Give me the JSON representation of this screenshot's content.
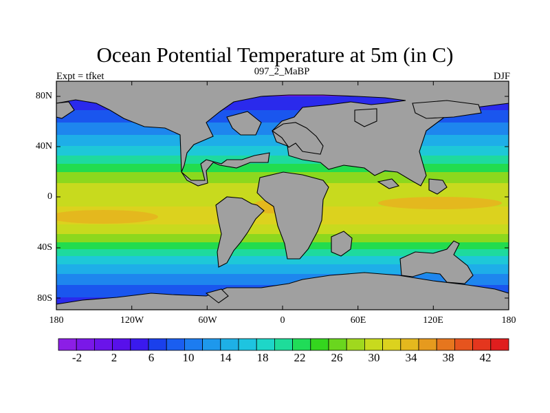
{
  "title": "Ocean Potential Temperature at 5m (in C)",
  "subtitle_left": "Expt = tfket",
  "subtitle_center": "097_2_MaBP",
  "subtitle_right": "DJF",
  "lat_labels": [
    "80N",
    "40N",
    "0",
    "40S",
    "80S"
  ],
  "lon_labels": [
    "180",
    "120W",
    "60W",
    "0",
    "60E",
    "120E",
    "180"
  ],
  "colorbar": {
    "labels": [
      "-2",
      "2",
      "6",
      "10",
      "14",
      "18",
      "22",
      "26",
      "30",
      "34",
      "38",
      "42"
    ],
    "colors": [
      "#8c1ee6",
      "#7a18e8",
      "#6a14ea",
      "#5810ea",
      "#3a1aee",
      "#1a40ec",
      "#1a5ef0",
      "#1c7cf0",
      "#1e98ec",
      "#1eb0e6",
      "#1ec4e0",
      "#1ed6c8",
      "#1edc9a",
      "#20dc58",
      "#34d61e",
      "#6ad61e",
      "#a0d81e",
      "#c8da1e",
      "#dcd21e",
      "#e4b81e",
      "#e69a1e",
      "#e6761e",
      "#e6541e",
      "#e4361e",
      "#e01e1e"
    ]
  },
  "map_colors": {
    "land": "#a0a0a0",
    "coast": "#000000",
    "bands": [
      "#7a18e8",
      "#2a2aec",
      "#1a56ee",
      "#1e86ee",
      "#1eaee8",
      "#1ec8d8",
      "#1eda9e",
      "#22dc4e",
      "#8cd81e",
      "#c8da1e",
      "#dcd21e",
      "#e4b81e"
    ]
  }
}
